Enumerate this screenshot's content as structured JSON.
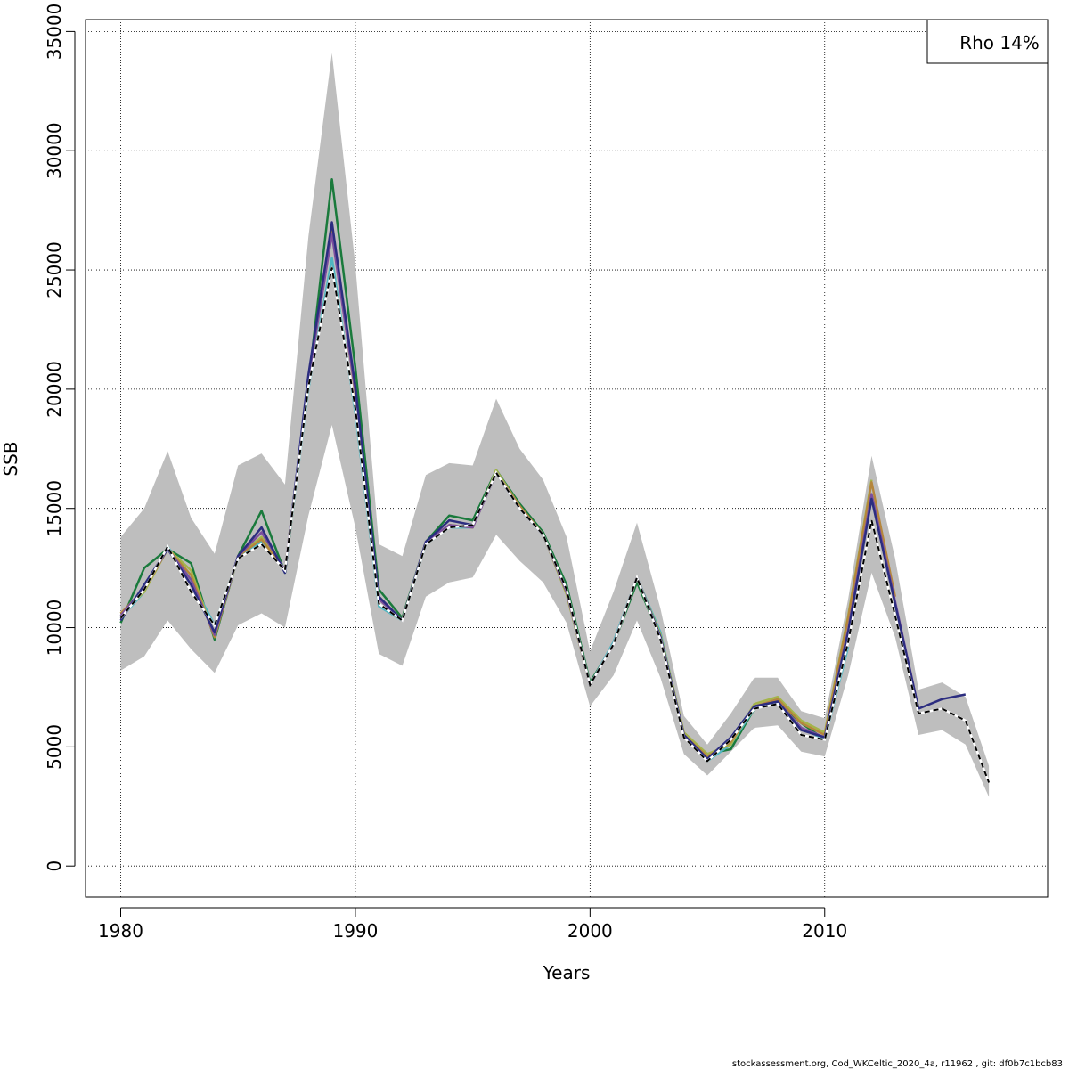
{
  "chart_data": {
    "type": "line",
    "xlabel": "Years",
    "ylabel": "SSB",
    "xlim": [
      1978.5,
      2019.5
    ],
    "ylim": [
      -1300,
      35500
    ],
    "x_ticks": [
      1980,
      1990,
      2000,
      2010
    ],
    "y_ticks": [
      0,
      5000,
      10000,
      15000,
      20000,
      25000,
      30000,
      35000
    ],
    "grid": true,
    "legend": {
      "text": "Rho 14%",
      "placement": "top-right"
    },
    "footer": "stockassessment.org, Cod_WKCeltic_2020_4a, r11962 , git: df0b7c1bcb83",
    "band": {
      "color": "#bebebe",
      "x": [
        1980,
        1981,
        1982,
        1983,
        1984,
        1985,
        1986,
        1987,
        1988,
        1989,
        1990,
        1991,
        1992,
        1993,
        1994,
        1995,
        1996,
        1997,
        1998,
        1999,
        2000,
        2001,
        2002,
        2003,
        2004,
        2005,
        2006,
        2007,
        2008,
        2009,
        2010,
        2011,
        2012,
        2013,
        2014,
        2015,
        2016,
        2017
      ],
      "lower": [
        8200,
        8800,
        10300,
        9100,
        8100,
        10100,
        10600,
        10000,
        14700,
        18500,
        14200,
        8900,
        8400,
        11300,
        11900,
        12100,
        13900,
        12800,
        11900,
        10200,
        6700,
        8000,
        10300,
        7900,
        4700,
        3800,
        4800,
        5800,
        5900,
        4800,
        4600,
        8000,
        12300,
        9600,
        5500,
        5700,
        5100,
        2900
      ],
      "upper": [
        13800,
        15000,
        17400,
        14600,
        13100,
        16800,
        17300,
        16000,
        26400,
        34100,
        25200,
        13500,
        13000,
        16400,
        16900,
        16800,
        19600,
        17500,
        16200,
        13800,
        9000,
        11500,
        14400,
        10800,
        6300,
        5100,
        6400,
        7900,
        7900,
        6500,
        6200,
        11200,
        17200,
        12900,
        7400,
        7700,
        7100,
        4200
      ]
    },
    "series": [
      {
        "color": "#000000",
        "dashed": true,
        "x": [
          1980,
          1981,
          1982,
          1983,
          1984,
          1985,
          1986,
          1987,
          1988,
          1989,
          1990,
          1991,
          1992,
          1993,
          1994,
          1995,
          1996,
          1997,
          1998,
          1999,
          2000,
          2001,
          2002,
          2003,
          2004,
          2005,
          2006,
          2007,
          2008,
          2009,
          2010,
          2011,
          2012,
          2013,
          2014,
          2015,
          2016,
          2017
        ],
        "values": [
          10400,
          11600,
          13400,
          11500,
          10100,
          12900,
          13500,
          12400,
          20100,
          25100,
          19200,
          11000,
          10300,
          13500,
          14200,
          14300,
          16500,
          15000,
          13900,
          11600,
          7600,
          9300,
          12100,
          9500,
          5400,
          4400,
          5300,
          6600,
          6800,
          5500,
          5300,
          9400,
          14500,
          10500,
          6400,
          6600,
          6100,
          3500
        ]
      },
      {
        "color": "#2c2d80",
        "dashed": false,
        "x": [
          1980,
          1981,
          1982,
          1983,
          1984,
          1985,
          1986,
          1987,
          1988,
          1989,
          1990,
          1991,
          1992,
          1993,
          1994,
          1995,
          1996,
          1997,
          1998,
          1999,
          2000,
          2001,
          2002,
          2003,
          2004,
          2005,
          2006,
          2007,
          2008,
          2009,
          2010,
          2011,
          2012,
          2013,
          2014,
          2015,
          2016
        ],
        "values": [
          10300,
          11800,
          13300,
          11800,
          9800,
          13000,
          14200,
          12300,
          20600,
          27000,
          20100,
          11300,
          10300,
          13600,
          14500,
          14300,
          16500,
          15000,
          13900,
          11600,
          7600,
          9300,
          12100,
          9600,
          5500,
          4500,
          5400,
          6700,
          6900,
          5700,
          5400,
          9800,
          15400,
          11000,
          6600,
          7000,
          7200
        ]
      },
      {
        "color": "#7b4f9d",
        "dashed": false,
        "x": [
          1980,
          1981,
          1982,
          1983,
          1984,
          1985,
          1986,
          1987,
          1988,
          1989,
          1990,
          1991,
          1992,
          1993,
          1994,
          1995,
          1996,
          1997,
          1998,
          1999,
          2000,
          2001,
          2002,
          2003,
          2004,
          2005,
          2006,
          2007,
          2008,
          2009,
          2010,
          2011,
          2012,
          2013,
          2014
        ],
        "values": [
          10500,
          11700,
          13300,
          12000,
          9700,
          13000,
          14000,
          12400,
          20400,
          26500,
          19900,
          11200,
          10300,
          13600,
          14300,
          14200,
          16500,
          15000,
          13900,
          11500,
          7600,
          9300,
          12100,
          9600,
          5500,
          4500,
          5300,
          6700,
          6900,
          5800,
          5400,
          9900,
          15600,
          11100,
          6600
        ]
      },
      {
        "color": "#b5863c",
        "dashed": false,
        "x": [
          1980,
          1981,
          1982,
          1983,
          1984,
          1985,
          1986,
          1987,
          1988,
          1989,
          1990,
          1991,
          1992,
          1993,
          1994,
          1995,
          1996,
          1997,
          1998,
          1999,
          2000,
          2001,
          2002,
          2003,
          2004,
          2005,
          2006,
          2007,
          2008,
          2009,
          2010,
          2011,
          2012,
          2013
        ],
        "values": [
          10600,
          11600,
          13300,
          12200,
          9600,
          13000,
          13700,
          12400,
          20300,
          26700,
          19800,
          11300,
          10300,
          13600,
          14300,
          14200,
          16500,
          15100,
          13900,
          11500,
          7600,
          9300,
          12100,
          9600,
          5500,
          4600,
          5200,
          6700,
          7000,
          6000,
          5500,
          10400,
          16100,
          11300
        ]
      },
      {
        "color": "#a4b44a",
        "dashed": false,
        "x": [
          1980,
          1981,
          1982,
          1983,
          1984,
          1985,
          1986,
          1987,
          1988,
          1989,
          1990,
          1991,
          1992,
          1993,
          1994,
          1995,
          1996,
          1997,
          1998,
          1999,
          2000,
          2001,
          2002,
          2003,
          2004,
          2005,
          2006,
          2007,
          2008,
          2009,
          2010,
          2011,
          2012
        ],
        "values": [
          10600,
          11500,
          13300,
          12400,
          9600,
          13000,
          13800,
          12400,
          20300,
          26900,
          19900,
          11200,
          10300,
          13600,
          14300,
          14200,
          16600,
          15100,
          13900,
          11400,
          7600,
          9300,
          12100,
          9700,
          5600,
          4700,
          5100,
          6800,
          7100,
          6100,
          5600,
          10500,
          16200
        ]
      },
      {
        "color": "#4fb5c0",
        "dashed": false,
        "x": [
          1980,
          1981,
          1982,
          1983,
          1984,
          1985,
          1986,
          1987,
          1988,
          1989,
          1990,
          1991,
          1992,
          1993,
          1994,
          1995,
          1996,
          1997,
          1998,
          1999,
          2000,
          2001,
          2002,
          2003,
          2004,
          2005,
          2006,
          2007,
          2008,
          2009,
          2010,
          2011
        ],
        "values": [
          10400,
          11500,
          13400,
          12000,
          10100,
          12900,
          13600,
          12400,
          20000,
          25500,
          19000,
          10900,
          10300,
          13500,
          14200,
          14200,
          16500,
          15000,
          13900,
          11600,
          7600,
          9400,
          12100,
          9800,
          5500,
          4400,
          5100,
          6600,
          6900,
          5800,
          5300,
          9200
        ]
      },
      {
        "color": "#1a7a3c",
        "dashed": false,
        "x": [
          1980,
          1981,
          1982,
          1983,
          1984,
          1985,
          1986,
          1987,
          1988,
          1989,
          1990,
          1991,
          1992,
          1993,
          1994,
          1995,
          1996,
          1997,
          1998,
          1999,
          2000,
          2001,
          2002,
          2003,
          2004,
          2005,
          2006,
          2007,
          2008,
          2009,
          2010
        ],
        "values": [
          10200,
          12500,
          13300,
          12700,
          9500,
          13000,
          14900,
          12300,
          20200,
          28800,
          20900,
          11600,
          10400,
          13600,
          14700,
          14500,
          16600,
          15200,
          14000,
          11800,
          7700,
          9300,
          11900,
          9600,
          5500,
          4700,
          4900,
          6600,
          6900,
          6000,
          5300
        ]
      }
    ]
  }
}
